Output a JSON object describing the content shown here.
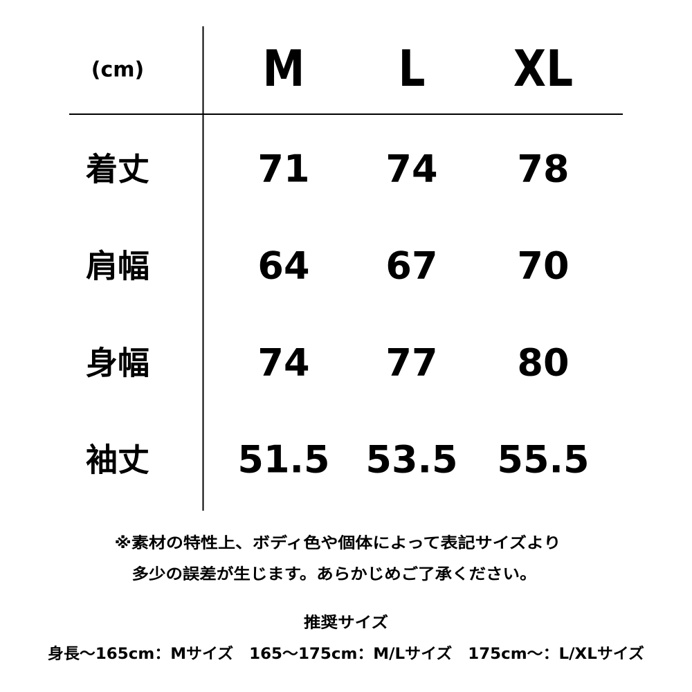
{
  "table": {
    "header": [
      "(cm)",
      "M",
      "L",
      "XL"
    ],
    "rows": [
      [
        "着丈",
        "71",
        "74",
        "78"
      ],
      [
        "肩幅",
        "64",
        "67",
        "70"
      ],
      [
        "身幅",
        "74",
        "77",
        "80"
      ],
      [
        "袖丈",
        "51.5",
        "53.5",
        "55.5"
      ]
    ]
  },
  "notes": [
    "※素材の特性上、ボディ色や個体によって表記サイズより",
    "多少の誤差が生じます。あらかじめご了承ください。"
  ],
  "recommendation": {
    "title": "推奨サイズ",
    "text": "身長〜165cm：Mサイズ　165〜175cm：M/Lサイズ　175cm〜：L/XLサイズ"
  }
}
